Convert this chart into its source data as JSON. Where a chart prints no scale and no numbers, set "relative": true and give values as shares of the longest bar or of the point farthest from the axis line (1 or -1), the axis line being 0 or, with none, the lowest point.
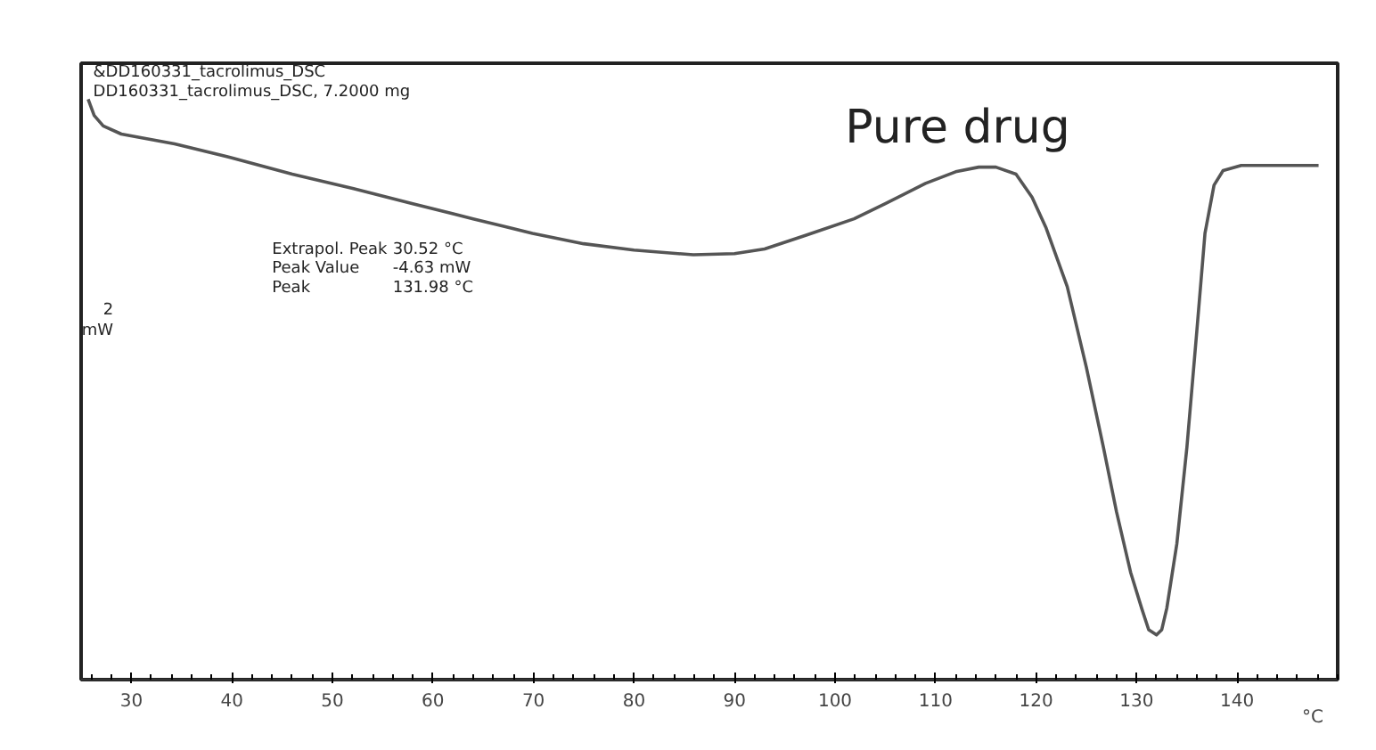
{
  "chart_data": {
    "type": "line",
    "relative": true,
    "xlabel": "°C",
    "xlim": [
      25,
      150
    ],
    "xticks": [
      30,
      40,
      50,
      60,
      70,
      80,
      90,
      100,
      110,
      120,
      130,
      140
    ],
    "grid": false,
    "marker": "none",
    "line_style": "solid",
    "annotations": [
      "&DD160331_tacrolimus_DSC",
      "DD160331_tacrolimus_DSC, 7.2000 mg",
      "Pure drug",
      "Extrapol. Peak",
      "30.52 °C",
      "Peak Value",
      "-4.63 mW",
      "Peak",
      "131.98 °C",
      "2",
      "mW"
    ],
    "series": [
      {
        "color": "#555555",
        "x": [
          25.7,
          26.3,
          27.2,
          29,
          34.3,
          40,
          46,
          52.1,
          58,
          64,
          69.9,
          75,
          80,
          85.9,
          90,
          93,
          97,
          101.9,
          105,
          109,
          112,
          114.3,
          116,
          118,
          119.6,
          121,
          123.1,
          125,
          126.7,
          128,
          129.4,
          130.5,
          131.2,
          131.98,
          132.5,
          133,
          134,
          135,
          136,
          136.8,
          137.7,
          138.6,
          140.4,
          144,
          148.1
        ],
        "values": [
          1.0,
          0.972,
          0.954,
          0.94,
          0.923,
          0.899,
          0.871,
          0.846,
          0.82,
          0.794,
          0.769,
          0.751,
          0.74,
          0.732,
          0.734,
          0.742,
          0.765,
          0.794,
          0.82,
          0.855,
          0.875,
          0.883,
          0.883,
          0.871,
          0.831,
          0.778,
          0.677,
          0.538,
          0.4,
          0.289,
          0.185,
          0.123,
          0.086,
          0.077,
          0.086,
          0.123,
          0.234,
          0.4,
          0.603,
          0.769,
          0.852,
          0.877,
          0.886,
          0.886,
          0.886
        ]
      }
    ]
  }
}
